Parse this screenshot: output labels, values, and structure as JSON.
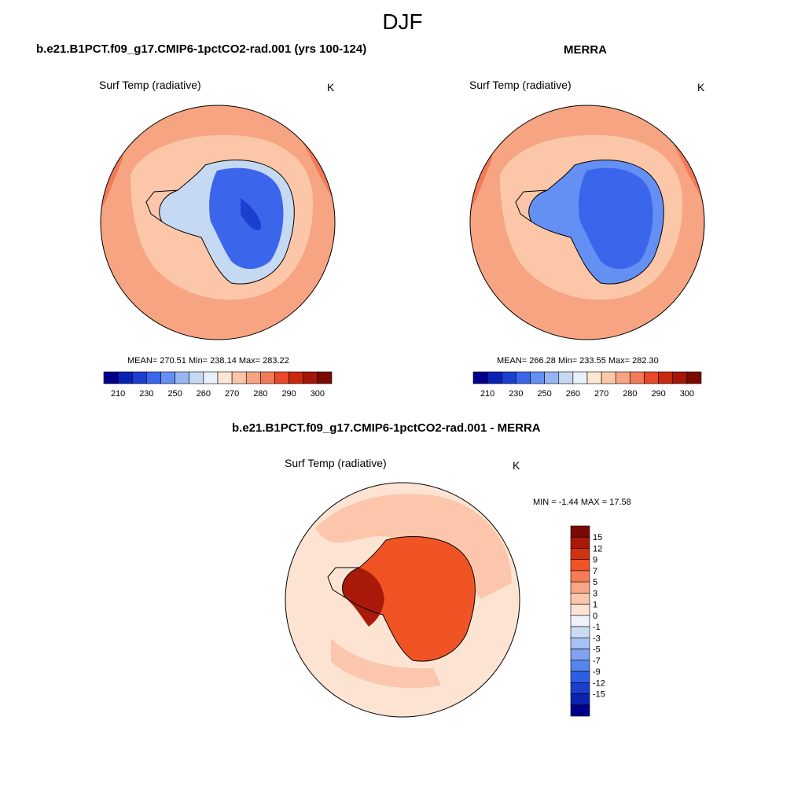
{
  "title": "DJF",
  "panels": {
    "model": {
      "title": "b.e21.B1PCT.f09_g17.CMIP6-1pctCO2-rad.001 (yrs 100-124)",
      "variable": "Surf Temp (radiative)",
      "units": "K",
      "stats": "MEAN= 270.51  Min= 238.14  Max= 283.22"
    },
    "obs": {
      "title": "MERRA",
      "variable": "Surf Temp (radiative)",
      "units": "K",
      "stats": "MEAN= 266.28  Min= 233.55  Max= 282.30"
    },
    "diff": {
      "title": "b.e21.B1PCT.f09_g17.CMIP6-1pctCO2-rad.001 - MERRA",
      "variable": "Surf Temp (radiative)",
      "units": "K",
      "stats": "MIN =  -1.44 MAX =  17.58"
    }
  },
  "colorbar_abs": {
    "colors": [
      "#00008c",
      "#0a22b4",
      "#1c3fd0",
      "#3b66ec",
      "#6490f4",
      "#96b5f2",
      "#c6d9f2",
      "#eaf0fa",
      "#fde6d2",
      "#fbc7a8",
      "#f6a482",
      "#f27a58",
      "#e9482a",
      "#c82a10",
      "#a31608",
      "#7a0a04"
    ],
    "tick_labels": [
      "210",
      "230",
      "250",
      "260",
      "270",
      "280",
      "290",
      "300"
    ]
  },
  "colorbar_diff": {
    "colors": [
      "#7a0a04",
      "#a91a0a",
      "#d33212",
      "#f05424",
      "#f57c55",
      "#f8a685",
      "#fbc6ab",
      "#fde4d2",
      "#eef3fb",
      "#c9dcf3",
      "#a6c2f2",
      "#7fa3f0",
      "#5584ec",
      "#2f5ee6",
      "#1a3fcc",
      "#0a24b0",
      "#00008c"
    ],
    "tick_labels": [
      "15",
      "12",
      "9",
      "7",
      "5",
      "3",
      "1",
      "0",
      "-1",
      "-3",
      "-5",
      "-7",
      "-9",
      "-12",
      "-15"
    ]
  },
  "map_colors": {
    "ocean_model": "#f6a482",
    "ring_model": "#fbc7a8",
    "edge_warm": "#f27a58",
    "plateau_model": "#3b66ec",
    "plateau_core": "#1c3fd0",
    "ocean_obs": "#f6a482",
    "plateau_obs": "#3b66ec",
    "diff_ocean": "#fde4d2",
    "diff_ring": "#fbc6ab",
    "diff_land": "#f05424",
    "diff_peninsula": "#a91a0a"
  }
}
